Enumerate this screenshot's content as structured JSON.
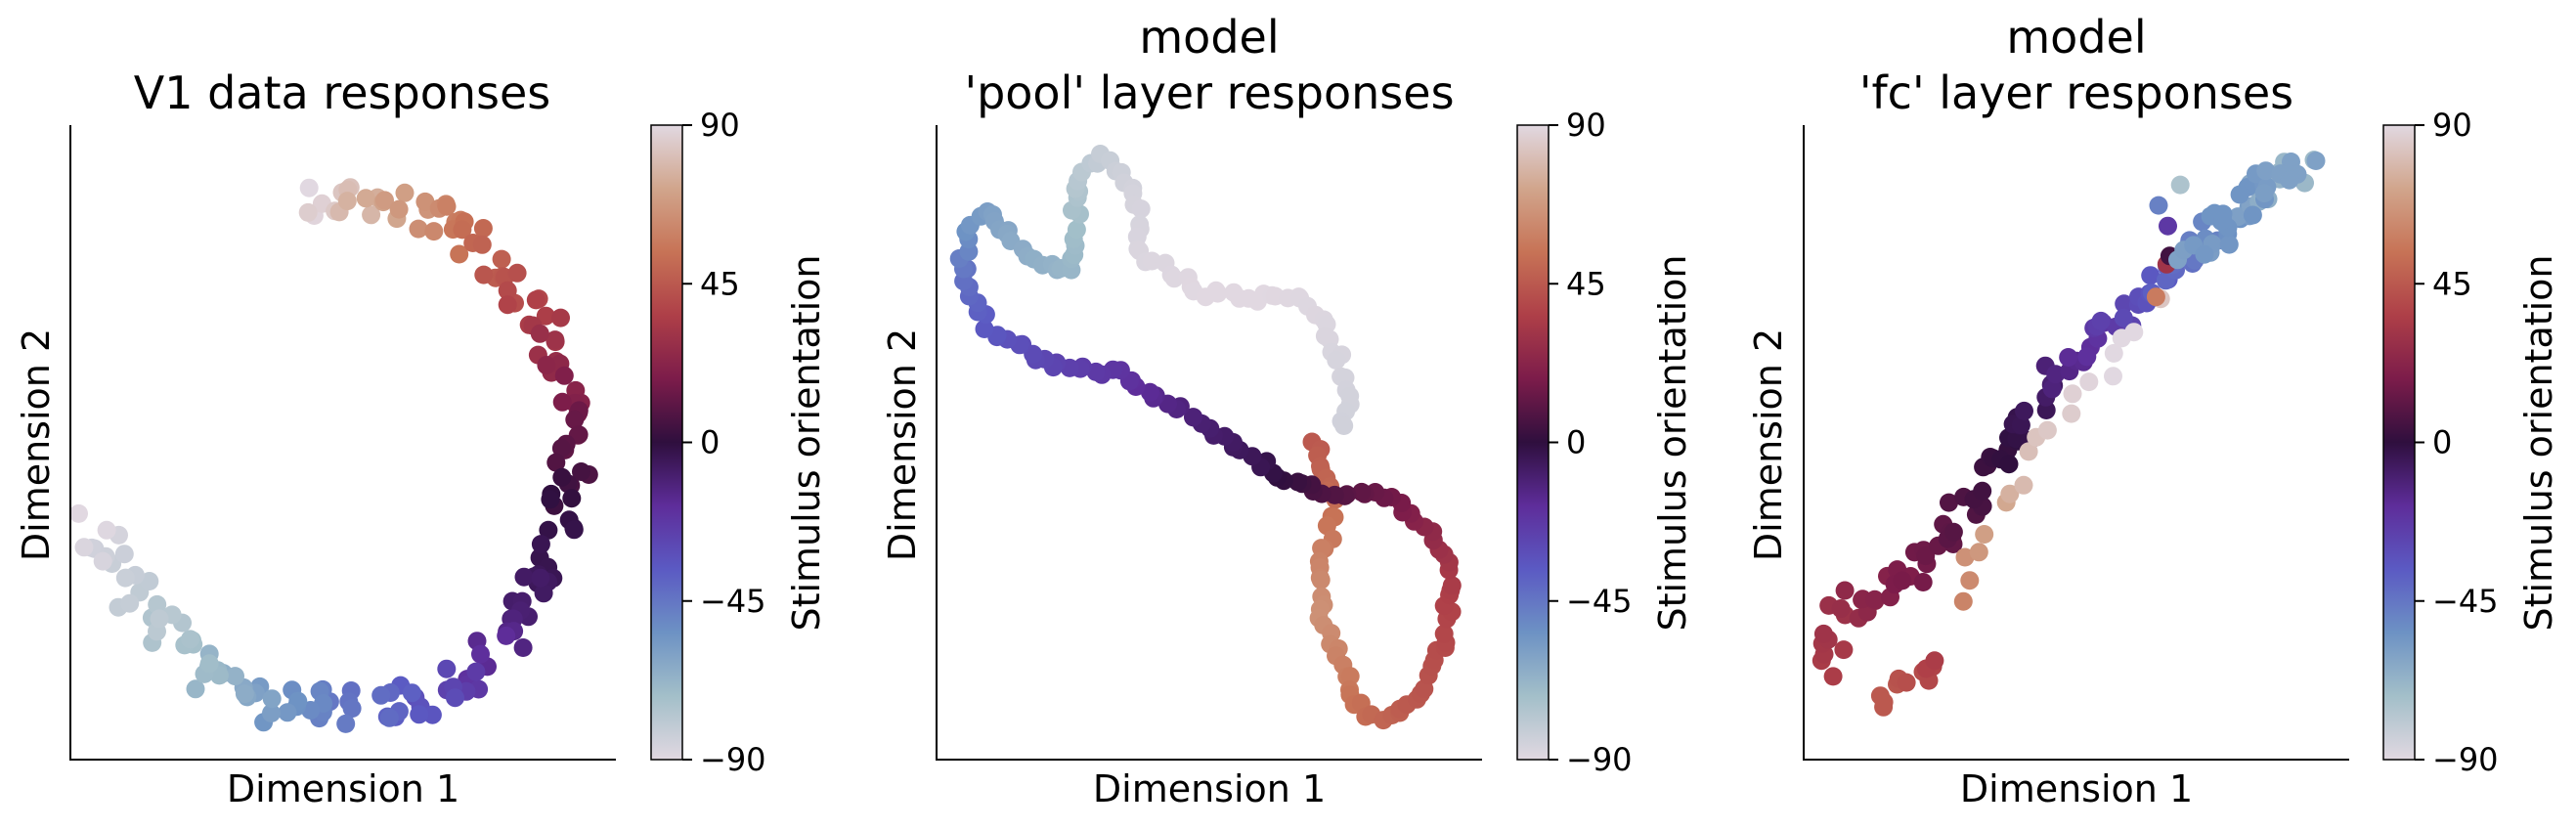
{
  "chart_data": [
    {
      "type": "scatter",
      "title": "V1 data responses",
      "xlabel": "Dimension 1",
      "ylabel": "Dimension 2",
      "colorbar": {
        "label": "Stimulus orientation",
        "ticks": [
          90,
          45,
          0,
          -45,
          -90
        ],
        "range": [
          -90,
          90
        ],
        "colormap": "twilight"
      },
      "shape": "horseshoe arc from upper-left down the right side to the bottom and back up to the left",
      "x_ticks": false,
      "y_ticks": false
    },
    {
      "type": "scatter",
      "title": "model\n'pool' layer responses",
      "xlabel": "Dimension 1",
      "ylabel": "Dimension 2",
      "colorbar": {
        "label": "Stimulus orientation",
        "ticks": [
          90,
          45,
          0,
          -45,
          -90
        ],
        "range": [
          -90,
          90
        ],
        "colormap": "twilight"
      },
      "shape": "continuous winding curve",
      "x_ticks": false,
      "y_ticks": false
    },
    {
      "type": "scatter",
      "title": "model\n'fc' layer responses",
      "xlabel": "Dimension 1",
      "ylabel": "Dimension 2",
      "colorbar": {
        "label": "Stimulus orientation",
        "ticks": [
          90,
          45,
          0,
          -45,
          -90
        ],
        "range": [
          -90,
          90
        ],
        "colormap": "twilight"
      },
      "shape": "diagonal band from lower-left to upper-right",
      "x_ticks": false,
      "y_ticks": false
    }
  ],
  "colormap_stops": [
    "#e1d8e1",
    "#a3bfc9",
    "#6d92c4",
    "#5b5ac3",
    "#5e2d9a",
    "#2f0f3e",
    "#7c1c4a",
    "#ae3f48",
    "#c77356",
    "#d1a58c",
    "#e1d8e1"
  ]
}
